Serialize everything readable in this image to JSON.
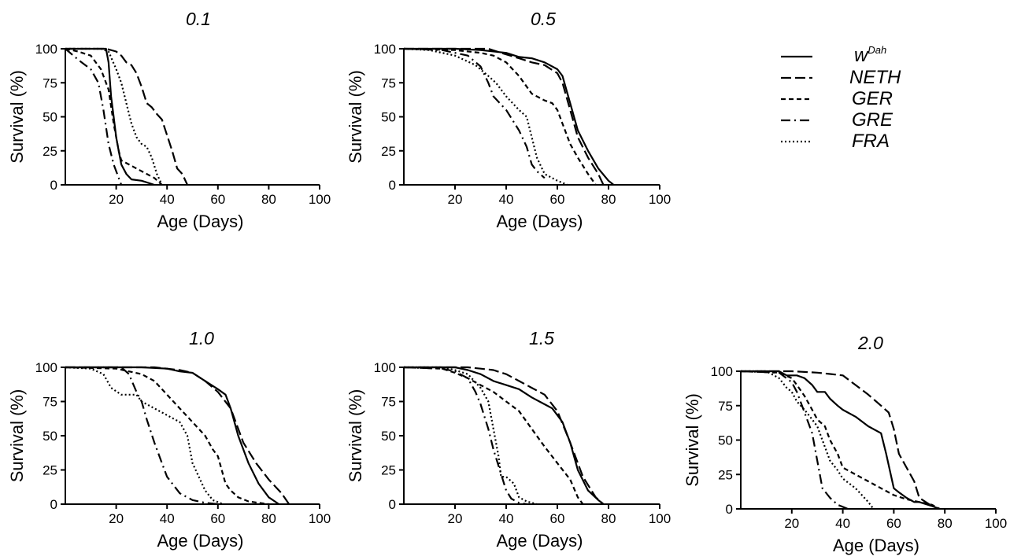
{
  "chart_data": [
    {
      "type": "line",
      "title": "0.1",
      "xlabel": "Age (Days)",
      "ylabel": "Survival (%)",
      "xlim": [
        0,
        100
      ],
      "ylim": [
        0,
        100
      ],
      "xticks": [
        20,
        40,
        60,
        80,
        100
      ],
      "yticks": [
        0,
        25,
        50,
        75,
        100
      ],
      "series": [
        {
          "name": "wDah",
          "style": "solid",
          "x": [
            0,
            14,
            16,
            17,
            18,
            19,
            20,
            21,
            22,
            24,
            26,
            30,
            35
          ],
          "y": [
            100,
            100,
            100,
            90,
            65,
            50,
            35,
            25,
            15,
            8,
            4,
            3,
            0
          ]
        },
        {
          "name": "NETH",
          "style": "long-dash",
          "x": [
            0,
            16,
            20,
            22,
            24,
            26,
            28,
            30,
            32,
            34,
            36,
            38,
            42,
            44,
            46,
            48
          ],
          "y": [
            100,
            100,
            98,
            95,
            90,
            88,
            82,
            72,
            60,
            57,
            52,
            48,
            25,
            12,
            8,
            0
          ]
        },
        {
          "name": "GER",
          "style": "short-dash",
          "x": [
            0,
            5,
            10,
            14,
            17,
            19,
            21,
            22,
            25,
            30,
            35,
            38
          ],
          "y": [
            100,
            98,
            95,
            85,
            70,
            45,
            25,
            18,
            15,
            10,
            5,
            0
          ]
        },
        {
          "name": "GRE",
          "style": "dash-dot",
          "x": [
            0,
            5,
            10,
            13,
            15,
            17,
            19,
            21,
            22
          ],
          "y": [
            100,
            92,
            85,
            75,
            55,
            30,
            15,
            5,
            0
          ]
        },
        {
          "name": "FRA",
          "style": "dotted",
          "x": [
            0,
            14,
            17,
            20,
            22,
            24,
            26,
            28,
            30,
            32,
            34,
            36,
            38
          ],
          "y": [
            100,
            100,
            98,
            85,
            75,
            60,
            45,
            35,
            30,
            28,
            20,
            8,
            0
          ]
        }
      ]
    },
    {
      "type": "line",
      "title": "0.5",
      "xlabel": "Age (Days)",
      "ylabel": "Survival (%)",
      "xlim": [
        0,
        100
      ],
      "ylim": [
        0,
        100
      ],
      "xticks": [
        20,
        40,
        60,
        80,
        100
      ],
      "yticks": [
        0,
        25,
        50,
        75,
        100
      ],
      "series": [
        {
          "name": "wDah",
          "style": "solid",
          "x": [
            0,
            20,
            30,
            40,
            45,
            50,
            55,
            60,
            62,
            65,
            68,
            72,
            76,
            80,
            82
          ],
          "y": [
            100,
            100,
            99,
            97,
            94,
            93,
            90,
            85,
            80,
            60,
            40,
            25,
            12,
            3,
            0
          ]
        },
        {
          "name": "NETH",
          "style": "long-dash",
          "x": [
            0,
            20,
            33,
            38,
            45,
            50,
            55,
            60,
            62,
            65,
            68,
            72,
            76,
            78
          ],
          "y": [
            100,
            100,
            100,
            97,
            93,
            90,
            88,
            82,
            75,
            55,
            35,
            20,
            8,
            0
          ]
        },
        {
          "name": "GER",
          "style": "short-dash",
          "x": [
            0,
            20,
            30,
            35,
            40,
            45,
            50,
            55,
            58,
            60,
            62,
            65,
            68,
            72,
            75
          ],
          "y": [
            100,
            99,
            97,
            95,
            90,
            80,
            67,
            62,
            60,
            55,
            45,
            30,
            20,
            8,
            0
          ]
        },
        {
          "name": "GRE",
          "style": "dash-dot",
          "x": [
            0,
            15,
            25,
            30,
            33,
            35,
            40,
            45,
            48,
            50,
            52,
            55
          ],
          "y": [
            100,
            99,
            95,
            87,
            75,
            65,
            55,
            40,
            28,
            15,
            10,
            5
          ]
        },
        {
          "name": "FRA",
          "style": "dotted",
          "x": [
            0,
            10,
            20,
            28,
            33,
            36,
            40,
            45,
            48,
            50,
            52,
            55,
            60,
            64
          ],
          "y": [
            100,
            99,
            95,
            88,
            80,
            75,
            65,
            55,
            50,
            35,
            20,
            8,
            3,
            0
          ]
        }
      ]
    },
    {
      "type": "line",
      "title": "1.0",
      "xlabel": "Age (Days)",
      "ylabel": "Survival (%)",
      "xlim": [
        0,
        100
      ],
      "ylim": [
        0,
        100
      ],
      "xticks": [
        20,
        40,
        60,
        80,
        100
      ],
      "yticks": [
        0,
        25,
        50,
        75,
        100
      ],
      "series": [
        {
          "name": "wDah",
          "style": "solid",
          "x": [
            0,
            30,
            40,
            45,
            50,
            55,
            60,
            63,
            65,
            68,
            72,
            76,
            80,
            84
          ],
          "y": [
            100,
            100,
            99,
            97,
            96,
            90,
            84,
            80,
            70,
            50,
            30,
            15,
            5,
            0
          ]
        },
        {
          "name": "NETH",
          "style": "long-dash",
          "x": [
            0,
            35,
            45,
            50,
            55,
            60,
            65,
            70,
            75,
            80,
            85,
            88
          ],
          "y": [
            100,
            100,
            98,
            96,
            90,
            82,
            70,
            45,
            30,
            18,
            8,
            0
          ]
        },
        {
          "name": "GER",
          "style": "short-dash",
          "x": [
            0,
            20,
            30,
            35,
            40,
            45,
            50,
            55,
            58,
            60,
            63,
            65,
            68,
            72,
            76,
            80
          ],
          "y": [
            100,
            99,
            95,
            90,
            80,
            70,
            60,
            50,
            40,
            35,
            15,
            10,
            5,
            2,
            1,
            0
          ]
        },
        {
          "name": "GRE",
          "style": "dash-dot",
          "x": [
            0,
            22,
            25,
            28,
            30,
            32,
            35,
            38,
            40,
            45,
            50,
            55,
            60
          ],
          "y": [
            100,
            100,
            95,
            82,
            75,
            62,
            45,
            30,
            20,
            8,
            3,
            1,
            0
          ]
        },
        {
          "name": "FRA",
          "style": "dotted",
          "x": [
            0,
            10,
            15,
            18,
            22,
            28,
            30,
            35,
            40,
            45,
            48,
            50,
            55,
            58,
            62
          ],
          "y": [
            100,
            99,
            95,
            85,
            80,
            80,
            75,
            70,
            65,
            60,
            50,
            30,
            10,
            3,
            0
          ]
        }
      ]
    },
    {
      "type": "line",
      "title": "1.5",
      "xlabel": "Age (Days)",
      "ylabel": "Survival (%)",
      "xlim": [
        0,
        100
      ],
      "ylim": [
        0,
        100
      ],
      "xticks": [
        20,
        40,
        60,
        80,
        100
      ],
      "yticks": [
        0,
        25,
        50,
        75,
        100
      ],
      "series": [
        {
          "name": "wDah",
          "style": "solid",
          "x": [
            0,
            20,
            25,
            30,
            35,
            40,
            45,
            50,
            55,
            58,
            62,
            65,
            68,
            72,
            76,
            78
          ],
          "y": [
            100,
            100,
            98,
            95,
            90,
            87,
            84,
            78,
            73,
            70,
            60,
            45,
            25,
            10,
            3,
            0
          ]
        },
        {
          "name": "NETH",
          "style": "long-dash",
          "x": [
            0,
            25,
            30,
            35,
            40,
            45,
            50,
            55,
            60,
            65,
            70,
            75,
            78
          ],
          "y": [
            100,
            100,
            99,
            98,
            95,
            90,
            85,
            80,
            68,
            45,
            20,
            5,
            0
          ]
        },
        {
          "name": "GER",
          "style": "short-dash",
          "x": [
            0,
            15,
            20,
            25,
            30,
            35,
            40,
            45,
            50,
            55,
            60,
            65,
            68,
            70
          ],
          "y": [
            100,
            99,
            96,
            92,
            87,
            82,
            75,
            68,
            55,
            42,
            30,
            18,
            5,
            0
          ]
        },
        {
          "name": "GRE",
          "style": "dash-dot",
          "x": [
            0,
            15,
            20,
            25,
            28,
            30,
            33,
            35,
            38,
            40,
            42,
            45,
            48
          ],
          "y": [
            100,
            99,
            97,
            92,
            82,
            73,
            55,
            40,
            22,
            10,
            4,
            1,
            0
          ]
        },
        {
          "name": "FRA",
          "style": "dotted",
          "x": [
            0,
            15,
            20,
            25,
            30,
            33,
            35,
            37,
            38,
            40,
            43,
            45,
            48,
            52
          ],
          "y": [
            100,
            100,
            98,
            95,
            85,
            75,
            55,
            35,
            20,
            20,
            15,
            5,
            2,
            0
          ]
        }
      ]
    },
    {
      "type": "line",
      "title": "2.0",
      "xlabel": "Age (Days)",
      "ylabel": "Survival (%)",
      "xlim": [
        0,
        100
      ],
      "ylim": [
        0,
        100
      ],
      "xticks": [
        20,
        40,
        60,
        80,
        100
      ],
      "yticks": [
        0,
        25,
        50,
        75,
        100
      ],
      "series": [
        {
          "name": "wDah",
          "style": "solid",
          "x": [
            0,
            15,
            18,
            22,
            25,
            28,
            30,
            33,
            35,
            38,
            40,
            45,
            50,
            55,
            57,
            60,
            62,
            65,
            68,
            70,
            75,
            78
          ],
          "y": [
            100,
            100,
            97,
            97,
            95,
            90,
            85,
            85,
            80,
            75,
            72,
            67,
            60,
            55,
            40,
            15,
            12,
            8,
            5,
            5,
            2,
            0
          ]
        },
        {
          "name": "NETH",
          "style": "long-dash",
          "x": [
            0,
            20,
            30,
            35,
            40,
            45,
            50,
            55,
            58,
            60,
            62,
            65,
            68,
            70,
            75
          ],
          "y": [
            100,
            100,
            99,
            98,
            97,
            90,
            83,
            75,
            70,
            58,
            40,
            30,
            20,
            8,
            2
          ]
        },
        {
          "name": "GER",
          "style": "short-dash",
          "x": [
            0,
            15,
            20,
            22,
            25,
            28,
            30,
            33,
            35,
            38,
            40,
            45,
            50,
            55,
            60,
            65,
            70,
            75,
            78
          ],
          "y": [
            100,
            99,
            95,
            90,
            82,
            72,
            65,
            60,
            50,
            40,
            30,
            25,
            20,
            15,
            10,
            7,
            5,
            3,
            0
          ]
        },
        {
          "name": "GRE",
          "style": "dash-dot",
          "x": [
            0,
            15,
            20,
            22,
            25,
            28,
            30,
            32,
            35,
            38,
            42
          ],
          "y": [
            100,
            99,
            92,
            85,
            70,
            55,
            35,
            15,
            8,
            3,
            0
          ]
        },
        {
          "name": "FRA",
          "style": "dotted",
          "x": [
            0,
            10,
            15,
            18,
            20,
            22,
            25,
            28,
            30,
            33,
            35,
            38,
            40,
            45,
            50,
            52
          ],
          "y": [
            100,
            100,
            95,
            88,
            85,
            78,
            72,
            65,
            60,
            45,
            35,
            28,
            22,
            15,
            5,
            0
          ]
        }
      ]
    }
  ],
  "legend": {
    "items": [
      {
        "label": "w",
        "sup": "Dah",
        "style": "solid"
      },
      {
        "label": "NETH",
        "style": "long-dash"
      },
      {
        "label": "GER",
        "style": "short-dash"
      },
      {
        "label": "GRE",
        "style": "dash-dot"
      },
      {
        "label": "FRA",
        "style": "dotted"
      }
    ]
  }
}
